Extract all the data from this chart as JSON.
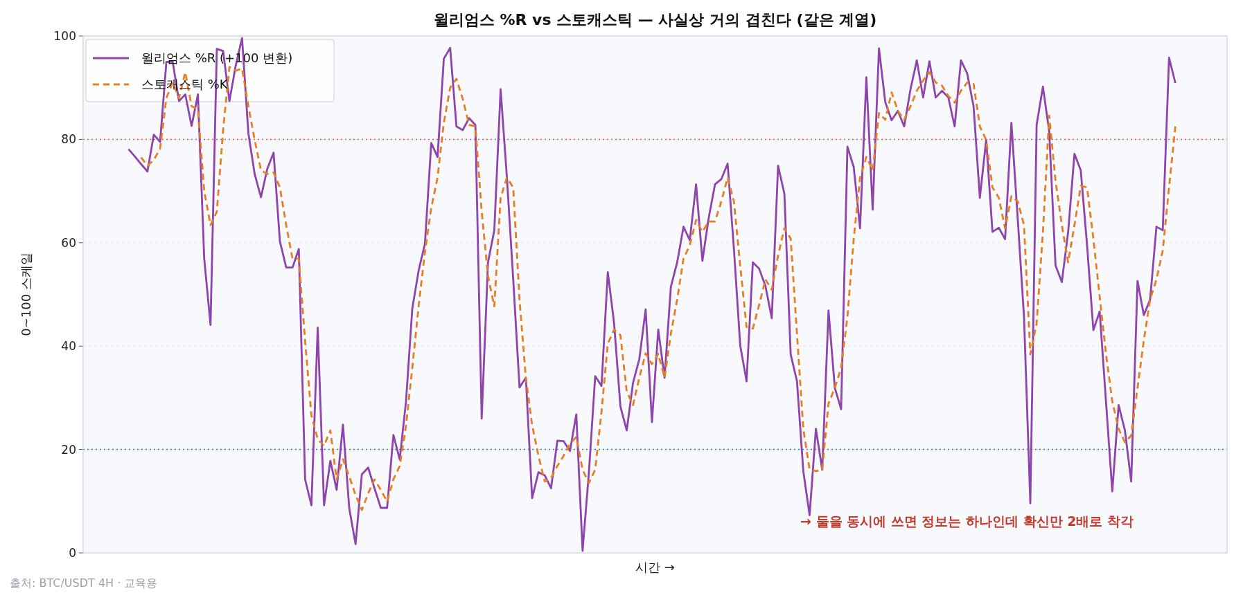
{
  "chart_data": {
    "type": "line",
    "title": "윌리엄스 %R vs 스토캐스틱 — 사실상 거의 겹친다 (같은 계열)",
    "xlabel": "시간 →",
    "ylabel": "0~100 스케일",
    "annotations": [
      "→ 둘을 동시에 쓰면 정보는 하나인데 확신만 2배로 착각",
      "출처: BTC/USDT 4H · 교육용"
    ],
    "categories": [
      null,
      null,
      null,
      null,
      null,
      null,
      null,
      null,
      null,
      null,
      null,
      null,
      null,
      null,
      null,
      null,
      null,
      null,
      null,
      null,
      null,
      null,
      null,
      null,
      null,
      null,
      null,
      null,
      null,
      null,
      null,
      null,
      null,
      null,
      null,
      null,
      null,
      null,
      null,
      null,
      null,
      null,
      null,
      null,
      null,
      null,
      null,
      null,
      null,
      null,
      null,
      null,
      null,
      null,
      null,
      null,
      null,
      null,
      null,
      null,
      null,
      null,
      null,
      null,
      null,
      null,
      null,
      null,
      null,
      null,
      null,
      null,
      null,
      null,
      null,
      null,
      null,
      null,
      null,
      null,
      null,
      null,
      null,
      null,
      null,
      null,
      null,
      null,
      null,
      null,
      null,
      null,
      null,
      null,
      null,
      null,
      null,
      null,
      null,
      null,
      null,
      null,
      null,
      null,
      null,
      null,
      null,
      null,
      null,
      null,
      null,
      null,
      null,
      null,
      null,
      null,
      null,
      null,
      null,
      null,
      null,
      null,
      null,
      null,
      null,
      null,
      null,
      null,
      null,
      null,
      null,
      null,
      null,
      null,
      null,
      null,
      null,
      null,
      null,
      null,
      null,
      null,
      null,
      null,
      null,
      null,
      null,
      null,
      null,
      null,
      null,
      null,
      null,
      null,
      null,
      null,
      null,
      null,
      null,
      null,
      null,
      null,
      null,
      null,
      null,
      null,
      null
    ],
    "series": [
      {
        "name": "윌리엄스 %R (+100 변환)",
        "color": "#8e44ad",
        "line_style": "solid",
        "values": [
          78.1,
          76.7,
          75.2,
          73.8,
          80.9,
          79.5,
          95,
          95,
          87.4,
          88.7,
          82.6,
          88.7,
          56.9,
          44.1,
          97.5,
          97.1,
          87.4,
          94.3,
          99.6,
          81.2,
          73.3,
          68.8,
          74.3,
          77.4,
          60.3,
          55.2,
          55.2,
          58.8,
          14.2,
          9.2,
          43.6,
          9.2,
          17.8,
          12.2,
          24.8,
          8.6,
          1.7,
          15.2,
          16.5,
          12.5,
          8.7,
          8.7,
          22.8,
          18.1,
          29.3,
          47.3,
          54.6,
          59.8,
          79.3,
          76.6,
          95.6,
          97.7,
          82.5,
          81.8,
          84.1,
          82.8,
          26,
          56.2,
          62.4,
          89.7,
          72.6,
          52.9,
          32,
          33.9,
          10.6,
          15.6,
          15,
          12.5,
          21.7,
          21.6,
          19.7,
          26.8,
          0.4,
          15.5,
          34.2,
          32.3,
          54.3,
          44.4,
          28.3,
          23.7,
          32.9,
          37.5,
          47.1,
          25.3,
          43.2,
          33.9,
          51.5,
          56.2,
          63.1,
          60.5,
          71.3,
          56.5,
          64.8,
          71.3,
          72.3,
          75.3,
          58.8,
          40.1,
          33.2,
          56.2,
          55,
          51.6,
          45.4,
          74.9,
          69.5,
          38.4,
          33.2,
          15.8,
          7.3,
          24,
          16.1,
          46.9,
          31.9,
          27.8,
          78.6,
          74.6,
          62.8,
          92,
          66.4,
          97.6,
          87.2,
          83.7,
          85.5,
          82.5,
          89.7,
          95.3,
          88.1,
          95.1,
          88.1,
          89.4,
          88.1,
          82.5,
          95.3,
          92.7,
          86.4,
          68.7,
          79.9,
          62.1,
          62.9,
          60.7,
          83.2,
          64.7,
          45.7,
          9.6,
          82.8,
          90.2,
          81.5,
          55.6,
          52.4,
          62.1,
          77.2,
          74,
          59.5,
          43.1,
          46.7,
          29.3,
          11.9,
          28.6,
          23.7,
          13.8,
          52.6,
          46,
          49,
          63.1,
          62.4,
          95.8,
          90.9
        ]
      },
      {
        "name": "스토캐스틱 %K",
        "color": "#e67e22",
        "line_style": "dashed",
        "values": [
          null,
          null,
          76.5,
          74.9,
          76,
          78.2,
          88,
          91,
          88,
          93,
          86.4,
          85.8,
          70,
          63.4,
          66,
          81.8,
          94,
          93.3,
          93.7,
          86.4,
          79.9,
          74,
          73.3,
          73.6,
          70.7,
          63.4,
          56.9,
          56.9,
          41,
          26.6,
          22,
          20.7,
          23.7,
          14.2,
          18.1,
          14.8,
          11.2,
          8.3,
          11.5,
          14.2,
          12.2,
          9.9,
          14.2,
          16.8,
          24.6,
          35.8,
          47.7,
          58.2,
          66.7,
          72.6,
          83.2,
          90,
          91.7,
          87.8,
          82.8,
          82.5,
          66.1,
          53.6,
          47.7,
          68.7,
          72.6,
          70.7,
          49,
          33.9,
          24.7,
          18.8,
          13.8,
          14.5,
          16.8,
          18.8,
          21.1,
          22.4,
          16.1,
          13.5,
          16.1,
          27.3,
          40.5,
          43.2,
          42.1,
          31.2,
          28.6,
          33.9,
          38.6,
          36.5,
          38.5,
          33.9,
          42.4,
          49,
          56.9,
          59.5,
          64.4,
          62.1,
          64.1,
          64.1,
          68,
          72.6,
          68,
          55.5,
          43.7,
          43.4,
          48,
          52.9,
          50.9,
          57.5,
          62.8,
          60.8,
          42.4,
          24,
          16.1,
          15.8,
          16.1,
          28.9,
          31.9,
          35.8,
          45.7,
          60.8,
          72.6,
          76.6,
          74,
          85.1,
          83.8,
          89.1,
          85.5,
          83.8,
          86.4,
          89.4,
          91.4,
          93,
          91,
          90.4,
          88.4,
          87.1,
          89.4,
          91,
          90.7,
          82.5,
          79.9,
          70.7,
          68.7,
          62.8,
          69,
          68,
          63.4,
          38.4,
          44.4,
          62.1,
          84.6,
          72,
          63.4,
          56.2,
          63.4,
          71,
          70.7,
          60.8,
          49.6,
          38.5,
          29.3,
          24,
          21.4,
          22.7,
          31.9,
          41.1,
          49,
          52.9,
          58.5,
          70.7,
          82.5
        ]
      }
    ],
    "ylim": [
      0,
      100
    ],
    "yticks": [
      0,
      20,
      40,
      60,
      80,
      100
    ],
    "grid": "y",
    "legend": "top left",
    "ref_lines": [
      {
        "axis": "y",
        "value": 80,
        "color": "#e74c3c",
        "line_style": "dotted"
      },
      {
        "axis": "y",
        "value": 20,
        "color": "#2980b9",
        "line_style": "dotted"
      }
    ]
  }
}
